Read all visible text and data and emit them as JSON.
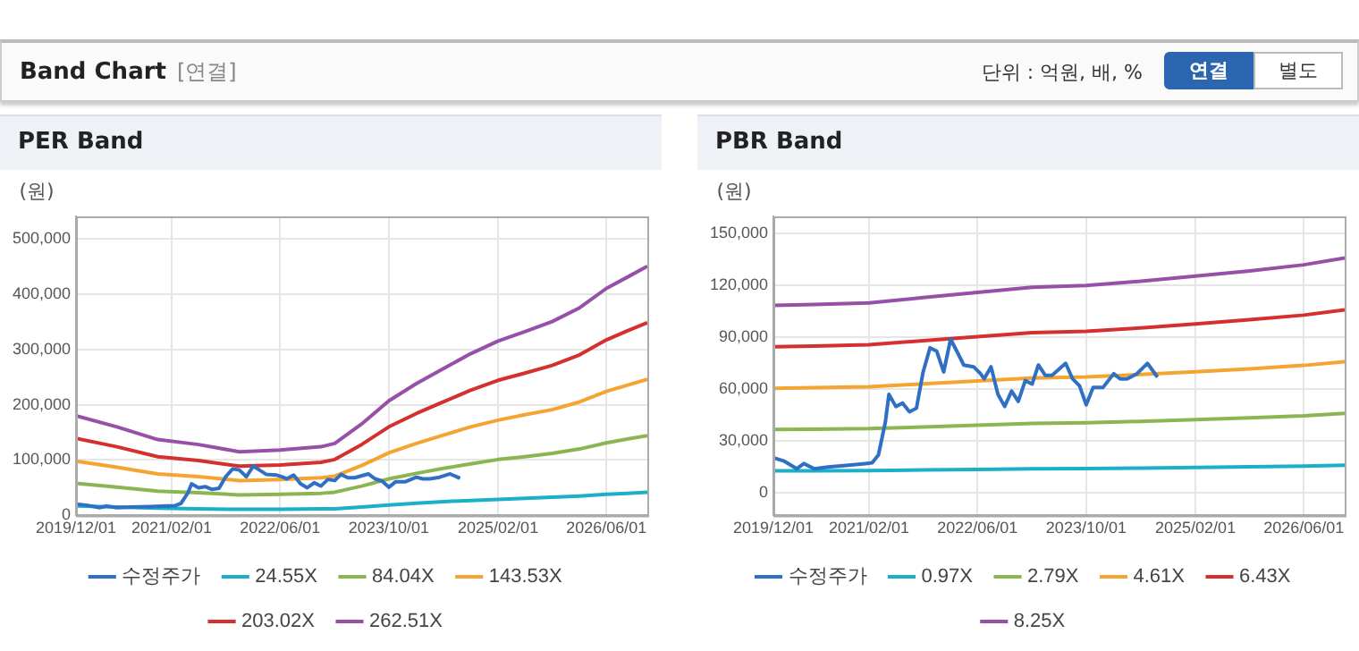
{
  "chart_data": [
    {
      "type": "other",
      "title": "Band Chart",
      "subtitle": "[연결]",
      "annotations": [
        "단위 : 억원, 배, %",
        "연결",
        "별도"
      ]
    },
    {
      "type": "line",
      "title": "PER Band",
      "ylabel": "(원)",
      "legend": "bottom",
      "grid": true,
      "marker": "none",
      "xlim": [
        "2019-12-01",
        "2026-12-01"
      ],
      "xticks": [
        {
          "value": "2019-12-01",
          "label": "2019/12/01"
        },
        {
          "value": "2021-02-01",
          "label": "2021/02/01"
        },
        {
          "value": "2022-06-01",
          "label": "2022/06/01"
        },
        {
          "value": "2023-10-01",
          "label": "2023/10/01"
        },
        {
          "value": "2025-02-01",
          "label": "2025/02/01"
        },
        {
          "value": "2026-06-01",
          "label": "2026/06/01"
        }
      ],
      "ylim": [
        0,
        540000
      ],
      "yticks": [
        {
          "value": 0,
          "label": "0"
        },
        {
          "value": 100000,
          "label": "100,000"
        },
        {
          "value": 200000,
          "label": "200,000"
        },
        {
          "value": 300000,
          "label": "300,000"
        },
        {
          "value": 400000,
          "label": "400,000"
        },
        {
          "value": 500000,
          "label": "500,000"
        }
      ],
      "series": [
        {
          "name": "수정주가",
          "color": "#2f6fc4",
          "x": [
            "2019-12-01",
            "2020-01-15",
            "2020-03-15",
            "2020-04-15",
            "2020-06-01",
            "2020-08-01",
            "2020-11-01",
            "2021-01-15",
            "2021-02-15",
            "2021-03-15",
            "2021-04-15",
            "2021-05-01",
            "2021-06-01",
            "2021-07-01",
            "2021-08-01",
            "2021-09-01",
            "2021-10-01",
            "2021-11-01",
            "2021-12-01",
            "2022-01-01",
            "2022-02-01",
            "2022-03-01",
            "2022-04-01",
            "2022-05-15",
            "2022-06-15",
            "2022-07-01",
            "2022-08-01",
            "2022-09-01",
            "2022-10-01",
            "2022-11-01",
            "2022-12-01",
            "2023-01-01",
            "2023-02-01",
            "2023-03-01",
            "2023-04-01",
            "2023-05-01",
            "2023-07-01",
            "2023-08-01",
            "2023-09-01",
            "2023-10-01",
            "2023-11-01",
            "2023-12-15",
            "2024-02-01",
            "2024-03-01",
            "2024-04-01",
            "2024-05-15",
            "2024-07-01",
            "2024-08-15"
          ],
          "values": [
            20300,
            18600,
            14000,
            17000,
            14000,
            15000,
            16000,
            17000,
            17500,
            22000,
            41000,
            57000,
            50000,
            52000,
            47000,
            49000,
            70000,
            84000,
            82000,
            70000,
            89000,
            82000,
            74000,
            73000,
            69000,
            66000,
            73000,
            57000,
            50000,
            59000,
            53000,
            65000,
            63000,
            74000,
            68000,
            68000,
            75000,
            66000,
            62000,
            51000,
            61000,
            61000,
            69000,
            66000,
            66000,
            69000,
            75000,
            67000
          ]
        },
        {
          "name": "24.55X",
          "color": "#1ab0c8",
          "x": [
            "2019-12-01",
            "2020-06-01",
            "2020-12-01",
            "2021-06-01",
            "2021-12-01",
            "2022-06-01",
            "2022-12-01",
            "2023-02-01",
            "2023-06-01",
            "2023-10-01",
            "2024-02-01",
            "2024-06-01",
            "2024-10-01",
            "2025-02-01",
            "2025-06-01",
            "2025-10-01",
            "2026-02-01",
            "2026-06-01",
            "2026-09-01",
            "2026-12-01"
          ],
          "values": [
            17000,
            15000,
            13000,
            12000,
            11000,
            11000,
            12000,
            12000,
            15000,
            19000,
            22000,
            25000,
            27000,
            29000,
            31000,
            33000,
            35000,
            38000,
            40000,
            42000
          ]
        },
        {
          "name": "84.04X",
          "color": "#8cb552",
          "x": [
            "2019-12-01",
            "2020-06-01",
            "2020-12-01",
            "2021-06-01",
            "2021-12-01",
            "2022-06-01",
            "2022-12-01",
            "2023-02-01",
            "2023-06-01",
            "2023-10-01",
            "2024-02-01",
            "2024-06-01",
            "2024-10-01",
            "2025-02-01",
            "2025-06-01",
            "2025-10-01",
            "2026-02-01",
            "2026-06-01",
            "2026-09-01",
            "2026-12-01"
          ],
          "values": [
            58000,
            51000,
            44000,
            41000,
            37000,
            38000,
            40000,
            42000,
            53000,
            66000,
            76000,
            85000,
            93000,
            101000,
            106000,
            112000,
            120000,
            131000,
            138000,
            144000
          ]
        },
        {
          "name": "143.53X",
          "color": "#f5a431",
          "x": [
            "2019-12-01",
            "2020-06-01",
            "2020-12-01",
            "2021-06-01",
            "2021-12-01",
            "2022-06-01",
            "2022-12-01",
            "2023-02-01",
            "2023-06-01",
            "2023-10-01",
            "2024-02-01",
            "2024-06-01",
            "2024-10-01",
            "2025-02-01",
            "2025-06-01",
            "2025-10-01",
            "2026-02-01",
            "2026-06-01",
            "2026-09-01",
            "2026-12-01"
          ],
          "values": [
            98000,
            87000,
            75000,
            70000,
            63000,
            65000,
            68000,
            71000,
            90000,
            113000,
            130000,
            145000,
            160000,
            172000,
            182000,
            191000,
            205000,
            224000,
            235000,
            246000
          ]
        },
        {
          "name": "203.02X",
          "color": "#d43030",
          "x": [
            "2019-12-01",
            "2020-06-01",
            "2020-12-01",
            "2021-06-01",
            "2021-12-01",
            "2022-06-01",
            "2022-12-01",
            "2023-02-01",
            "2023-06-01",
            "2023-10-01",
            "2024-02-01",
            "2024-06-01",
            "2024-10-01",
            "2025-02-01",
            "2025-06-01",
            "2025-10-01",
            "2026-02-01",
            "2026-06-01",
            "2026-09-01",
            "2026-12-01"
          ],
          "values": [
            139000,
            124000,
            106000,
            99000,
            89000,
            91000,
            96000,
            101000,
            128000,
            160000,
            184000,
            205000,
            226000,
            244000,
            257000,
            271000,
            290000,
            317000,
            333000,
            348000
          ]
        },
        {
          "name": "262.51X",
          "color": "#9650a8",
          "x": [
            "2019-12-01",
            "2020-06-01",
            "2020-12-01",
            "2021-06-01",
            "2021-12-01",
            "2022-06-01",
            "2022-12-01",
            "2023-02-01",
            "2023-06-01",
            "2023-10-01",
            "2024-02-01",
            "2024-06-01",
            "2024-10-01",
            "2025-02-01",
            "2025-06-01",
            "2025-10-01",
            "2026-02-01",
            "2026-06-01",
            "2026-09-01",
            "2026-12-01"
          ],
          "values": [
            180000,
            160000,
            137000,
            128000,
            115000,
            118000,
            124000,
            130000,
            165000,
            207000,
            238000,
            265000,
            292000,
            315000,
            332000,
            350000,
            375000,
            410000,
            430000,
            450000
          ]
        }
      ]
    },
    {
      "type": "line",
      "title": "PBR Band",
      "ylabel": "(원)",
      "legend": "bottom",
      "grid": true,
      "marker": "none",
      "xlim": [
        "2019-12-01",
        "2026-12-01"
      ],
      "xticks": [
        {
          "value": "2019-12-01",
          "label": "2019/12/01"
        },
        {
          "value": "2021-02-01",
          "label": "2021/02/01"
        },
        {
          "value": "2022-06-01",
          "label": "2022/06/01"
        },
        {
          "value": "2023-10-01",
          "label": "2023/10/01"
        },
        {
          "value": "2025-02-01",
          "label": "2025/02/01"
        },
        {
          "value": "2026-06-01",
          "label": "2026/06/01"
        }
      ],
      "ylim": [
        -13000,
        160000
      ],
      "yticks": [
        {
          "value": 0,
          "label": "0"
        },
        {
          "value": 30000,
          "label": "30,000"
        },
        {
          "value": 60000,
          "label": "60,000"
        },
        {
          "value": 90000,
          "label": "90,000"
        },
        {
          "value": 120000,
          "label": "120,000"
        },
        {
          "value": 150000,
          "label": "150,000"
        }
      ],
      "series": [
        {
          "name": "수정주가",
          "color": "#2f6fc4",
          "x": [
            "2019-12-01",
            "2020-01-15",
            "2020-03-15",
            "2020-04-15",
            "2020-06-01",
            "2020-08-01",
            "2020-11-01",
            "2021-01-15",
            "2021-02-15",
            "2021-03-15",
            "2021-04-15",
            "2021-05-01",
            "2021-06-01",
            "2021-07-01",
            "2021-08-01",
            "2021-09-01",
            "2021-10-01",
            "2021-11-01",
            "2021-12-01",
            "2022-01-01",
            "2022-02-01",
            "2022-03-01",
            "2022-04-01",
            "2022-05-15",
            "2022-06-15",
            "2022-07-01",
            "2022-08-01",
            "2022-09-01",
            "2022-10-01",
            "2022-11-01",
            "2022-12-01",
            "2023-01-01",
            "2023-02-01",
            "2023-03-01",
            "2023-04-01",
            "2023-05-01",
            "2023-07-01",
            "2023-08-01",
            "2023-09-01",
            "2023-10-01",
            "2023-11-01",
            "2023-12-15",
            "2024-02-01",
            "2024-03-01",
            "2024-04-01",
            "2024-05-15",
            "2024-07-01",
            "2024-08-15"
          ],
          "values": [
            20300,
            18600,
            14000,
            17000,
            14000,
            15000,
            16000,
            17000,
            17500,
            22000,
            41000,
            57000,
            50000,
            52000,
            47000,
            49000,
            70000,
            84000,
            82000,
            70000,
            89000,
            82000,
            74000,
            73000,
            69000,
            66000,
            73000,
            57000,
            50000,
            59000,
            53000,
            65000,
            63000,
            74000,
            68000,
            68000,
            75000,
            66000,
            62000,
            51000,
            61000,
            61000,
            69000,
            66000,
            66000,
            69000,
            75000,
            67000
          ]
        },
        {
          "name": "0.97X",
          "color": "#1ab0c8",
          "x": [
            "2019-12-01",
            "2020-06-01",
            "2021-02-01",
            "2021-10-01",
            "2022-06-01",
            "2023-02-01",
            "2023-10-01",
            "2024-06-01",
            "2025-02-01",
            "2025-10-01",
            "2026-06-01",
            "2026-12-01"
          ],
          "values": [
            12800,
            12800,
            12900,
            13300,
            13600,
            14000,
            14100,
            14400,
            14800,
            15100,
            15500,
            16000
          ]
        },
        {
          "name": "2.79X",
          "color": "#8cb552",
          "x": [
            "2019-12-01",
            "2020-06-01",
            "2021-02-01",
            "2021-10-01",
            "2022-06-01",
            "2023-02-01",
            "2023-10-01",
            "2024-06-01",
            "2025-02-01",
            "2025-10-01",
            "2026-06-01",
            "2026-12-01"
          ],
          "values": [
            36700,
            36900,
            37200,
            38200,
            39200,
            40200,
            40600,
            41400,
            42400,
            43500,
            44600,
            46000
          ]
        },
        {
          "name": "4.61X",
          "color": "#f5a431",
          "x": [
            "2019-12-01",
            "2020-06-01",
            "2021-02-01",
            "2021-10-01",
            "2022-06-01",
            "2023-02-01",
            "2023-10-01",
            "2024-06-01",
            "2025-02-01",
            "2025-10-01",
            "2026-06-01",
            "2026-12-01"
          ],
          "values": [
            60600,
            60900,
            61500,
            63100,
            64800,
            66500,
            67100,
            68500,
            70100,
            71800,
            73800,
            76000
          ]
        },
        {
          "name": "6.43X",
          "color": "#d43030",
          "x": [
            "2019-12-01",
            "2020-06-01",
            "2021-02-01",
            "2021-10-01",
            "2022-06-01",
            "2023-02-01",
            "2023-10-01",
            "2024-06-01",
            "2025-02-01",
            "2025-10-01",
            "2026-06-01",
            "2026-12-01"
          ],
          "values": [
            84600,
            85000,
            85700,
            88100,
            90400,
            92700,
            93500,
            95500,
            97800,
            100200,
            102900,
            106000
          ]
        },
        {
          "name": "8.25X",
          "color": "#9650a8",
          "x": [
            "2019-12-01",
            "2020-06-01",
            "2021-02-01",
            "2021-10-01",
            "2022-06-01",
            "2023-02-01",
            "2023-10-01",
            "2024-06-01",
            "2025-02-01",
            "2025-10-01",
            "2026-06-01",
            "2026-12-01"
          ],
          "values": [
            108500,
            109000,
            110000,
            113000,
            116000,
            119000,
            120000,
            122500,
            125500,
            128500,
            132000,
            136000
          ]
        }
      ]
    }
  ]
}
